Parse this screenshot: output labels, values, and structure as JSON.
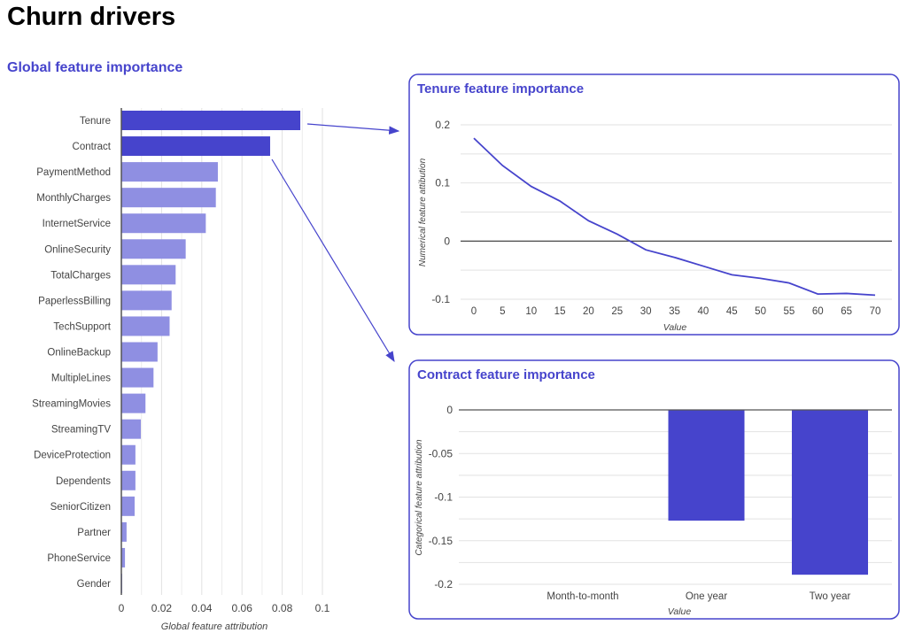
{
  "page_title": "Churn drivers",
  "accent_color": "#4644cc",
  "light_bar_color": "#8f8fe2",
  "arrows": "Tenure and Contract bars point to their detail panels",
  "chart_data": [
    {
      "type": "bar",
      "orientation": "horizontal",
      "title": "Global feature importance",
      "xlabel": "Global feature attribution",
      "xlim": [
        0,
        0.1
      ],
      "xticks": [
        "0",
        "0.02",
        "0.04",
        "0.06",
        "0.08",
        "0.1"
      ],
      "grid": true,
      "categories": [
        "Tenure",
        "Contract",
        "PaymentMethod",
        "MonthlyCharges",
        "InternetService",
        "OnlineSecurity",
        "TotalCharges",
        "PaperlessBilling",
        "TechSupport",
        "OnlineBackup",
        "MultipleLines",
        "StreamingMovies",
        "StreamingTV",
        "DeviceProtection",
        "Dependents",
        "SeniorCitizen",
        "Partner",
        "PhoneService",
        "Gender"
      ],
      "values": [
        0.089,
        0.074,
        0.048,
        0.047,
        0.042,
        0.032,
        0.027,
        0.025,
        0.024,
        0.018,
        0.016,
        0.012,
        0.0097,
        0.007,
        0.007,
        0.0066,
        0.0026,
        0.0018,
        0.0004
      ],
      "highlighted": [
        "Tenure",
        "Contract"
      ]
    },
    {
      "type": "line",
      "title": "Tenure feature importance",
      "xlabel": "Value",
      "ylabel": "Numerical feature attibution",
      "ylim": [
        -0.1,
        0.2
      ],
      "yticks": [
        "0.2",
        "0.1",
        "0",
        "-0.1"
      ],
      "xticks": [
        "0",
        "5",
        "10",
        "15",
        "20",
        "25",
        "30",
        "35",
        "40",
        "45",
        "50",
        "55",
        "60",
        "65",
        "70"
      ],
      "grid": true,
      "x": [
        0,
        5,
        10,
        15,
        20,
        25,
        30,
        35,
        40,
        45,
        50,
        55,
        60,
        65,
        70
      ],
      "y": [
        0.177,
        0.13,
        0.094,
        0.069,
        0.035,
        0.012,
        -0.015,
        -0.028,
        -0.043,
        -0.058,
        -0.064,
        -0.072,
        -0.091,
        -0.09,
        -0.093
      ]
    },
    {
      "type": "bar",
      "title": "Contract feature importance",
      "xlabel": "Value",
      "ylabel": "Categorical feature attribution",
      "ylim": [
        -0.2,
        0
      ],
      "yticks": [
        "0",
        "-0.05",
        "-0.1",
        "-0.15",
        "-0.2"
      ],
      "grid": true,
      "categories": [
        "Month-to-month",
        "One year",
        "Two year"
      ],
      "values": [
        0,
        -0.127,
        -0.189
      ]
    }
  ]
}
